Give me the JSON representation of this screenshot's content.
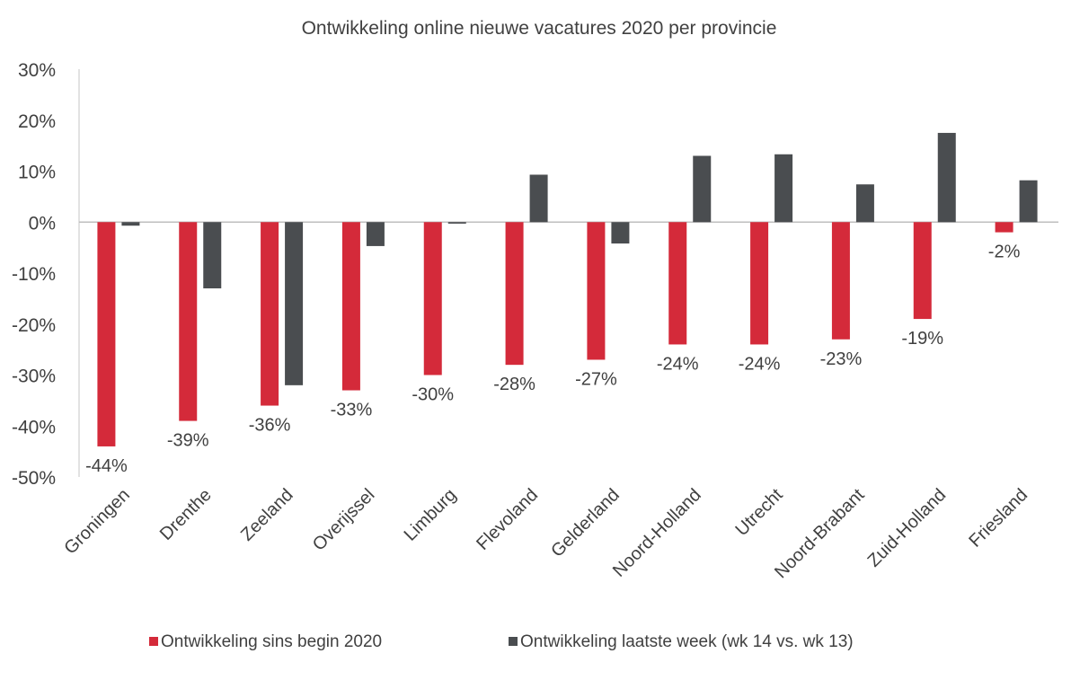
{
  "chart_data": {
    "type": "bar",
    "title": "Ontwikkeling online nieuwe vacatures 2020 per provincie",
    "xlabel": "",
    "ylabel": "",
    "ylim": [
      -50,
      30
    ],
    "yticks": [
      "30%",
      "20%",
      "10%",
      "0%",
      "-10%",
      "-20%",
      "-30%",
      "-40%",
      "-50%"
    ],
    "ytick_values": [
      30,
      20,
      10,
      0,
      -10,
      -20,
      -30,
      -40,
      -50
    ],
    "grid": false,
    "legend_position": "bottom",
    "categories": [
      "Groningen",
      "Drenthe",
      "Zeeland",
      "Overijssel",
      "Limburg",
      "Flevoland",
      "Gelderland",
      "Noord-Holland",
      "Utrecht",
      "Noord-Brabant",
      "Zuid-Holland",
      "Friesland"
    ],
    "series": [
      {
        "name": "Ontwikkeling sins begin 2020",
        "color": "#d42a3a",
        "values": [
          -44,
          -39,
          -36,
          -33,
          -30,
          -28,
          -27,
          -24,
          -24,
          -23,
          -19,
          -2
        ],
        "labels": [
          "-44%",
          "-39%",
          "-36%",
          "-33%",
          "-30%",
          "-28%",
          "-27%",
          "-24%",
          "-24%",
          "-23%",
          "-19%",
          "-2%"
        ]
      },
      {
        "name": "Ontwikkeling laatste week (wk 14 vs. wk 13)",
        "color": "#4a4d50",
        "values": [
          -0.7,
          -13,
          -32,
          -4.7,
          -0.3,
          9.3,
          -4.2,
          13,
          13.3,
          7.4,
          17.5,
          8.2
        ]
      }
    ]
  }
}
